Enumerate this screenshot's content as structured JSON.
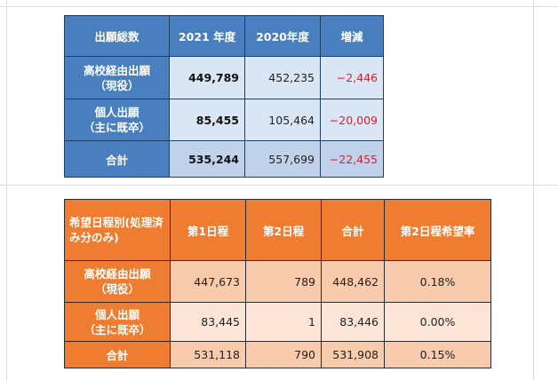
{
  "table1": {
    "headers": [
      "出願総数",
      "2021 年度",
      "2020年度",
      "増減"
    ],
    "rows": [
      {
        "label": "高校経由出願\n（現役）",
        "y2021": "449,789",
        "y2020": "452,235",
        "change": "−2,446"
      },
      {
        "label": "個人出願\n（主に既卒）",
        "y2021": "85,455",
        "y2020": "105,464",
        "change": "−20,009"
      },
      {
        "label": "合計",
        "y2021": "535,244",
        "y2020": "557,699",
        "change": "−22,455"
      }
    ],
    "colors": {
      "header": "#4a7fbf",
      "cell": "#dbe6f4",
      "negative": "#e8182a"
    }
  },
  "table2": {
    "headers": [
      "希望日程別(処理済み分のみ)",
      "第1日程",
      "第2日程",
      "合計",
      "第2日程希望率"
    ],
    "rows": [
      {
        "label": "高校経由出願\n（現役）",
        "day1": "447,673",
        "day2": "789",
        "total": "448,462",
        "rate": "0.18%"
      },
      {
        "label": "個人出願\n（主に既卒）",
        "day1": "83,445",
        "day2": "1",
        "total": "83,446",
        "rate": "0.00%"
      },
      {
        "label": "合計",
        "day1": "531,118",
        "day2": "790",
        "total": "531,908",
        "rate": "0.15%"
      }
    ],
    "colors": {
      "header": "#ee7d31",
      "cell": "#f8cbad",
      "cell_light": "#fce4d6"
    }
  }
}
